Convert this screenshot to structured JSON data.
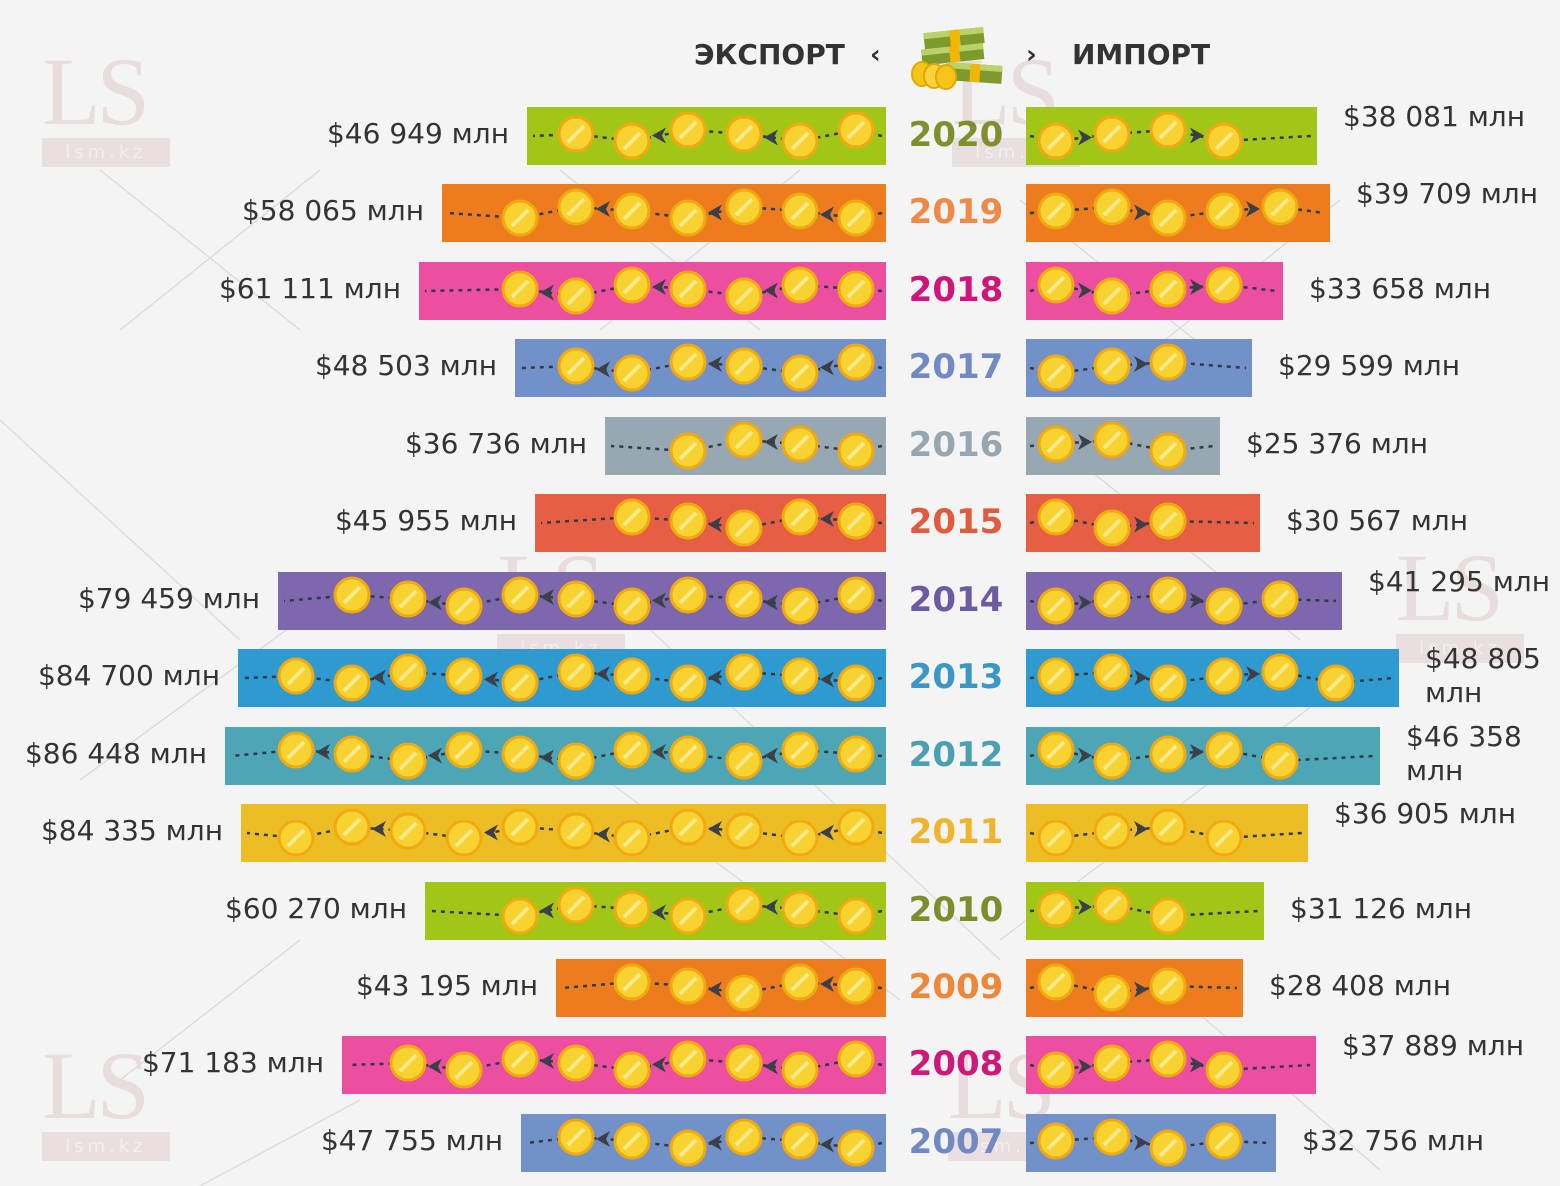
{
  "header": {
    "export_label": "ЭКСПОРТ",
    "import_label": "ИМПОРТ",
    "left_chevron": "‹",
    "right_chevron": "›"
  },
  "watermark": {
    "logo": "LS",
    "site": "lsm.kz"
  },
  "chart_data": {
    "type": "bar",
    "orientation": "horizontal-diverging",
    "title": "",
    "unit_suffix": "млн",
    "categories": [
      "2020",
      "2019",
      "2018",
      "2017",
      "2016",
      "2015",
      "2014",
      "2013",
      "2012",
      "2011",
      "2010",
      "2009",
      "2008",
      "2007"
    ],
    "series": [
      {
        "name": "ЭКСПОРТ",
        "side": "left",
        "values": [
          46949,
          58065,
          61111,
          48503,
          36736,
          45955,
          79459,
          84700,
          86448,
          84335,
          60270,
          43195,
          71183,
          47755
        ],
        "labels": [
          "$46 949 млн",
          "$58 065 млн",
          "$61 111 млн",
          "$48 503 млн",
          "$36 736 млн",
          "$45 955 млн",
          "$79 459 млн",
          "$84 700 млн",
          "$86 448 млн",
          "$84 335 млн",
          "$60 270 млн",
          "$43 195 млн",
          "$71 183 млн",
          "$47 755 млн"
        ]
      },
      {
        "name": "ИМПОРТ",
        "side": "right",
        "values": [
          38081,
          39709,
          33658,
          29599,
          25376,
          30567,
          41295,
          48805,
          46358,
          36905,
          31126,
          28408,
          37889,
          32756
        ],
        "labels": [
          "$38 081 млн",
          "$39 709 млн",
          "$33 658 млн",
          "$29 599 млн",
          "$25 376 млн",
          "$30 567 млн",
          "$41 295 млн",
          "$48 805 млн",
          "$46 358 млн",
          "$36 905 млн",
          "$31 126 млн",
          "$28 408 млн",
          "$37 889 млн",
          "$32 756 млн"
        ]
      }
    ],
    "bar_colors": [
      "#a2c617",
      "#ed7c1f",
      "#ec4ea0",
      "#7391c9",
      "#97a8b2",
      "#e65f45",
      "#7d68ae",
      "#2f9ad0",
      "#4da6b5",
      "#edbd26",
      "#a2c617",
      "#ed7c1f",
      "#ec4ea0",
      "#7391c9"
    ],
    "year_colors": [
      "#7f8f2c",
      "#ee8a46",
      "#d0157a",
      "#7189c4",
      "#98a6b1",
      "#e05a3c",
      "#6d5aa3",
      "#3b97c8",
      "#4b9fb0",
      "#efb42c",
      "#7c8d2c",
      "#ee8738",
      "#cf1879",
      "#7188c2"
    ],
    "axis_min": 0,
    "grid": false,
    "legend": "top-center"
  }
}
